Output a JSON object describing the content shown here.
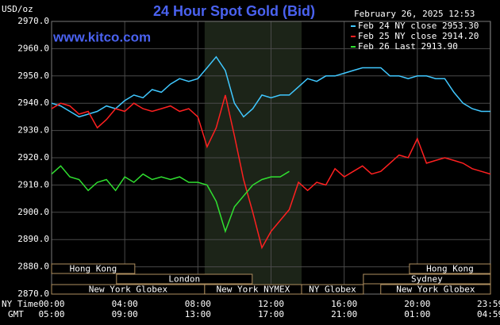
{
  "chart_data": {
    "type": "line",
    "title": "24 Hour Spot Gold (Bid)",
    "units": "USD/oz",
    "watermark": "www.kitco.com",
    "timestamp": "February 26, 2025 12:53",
    "x_row_labels": [
      "NY Time",
      "GMT"
    ],
    "grid": true,
    "xlim": [
      0,
      24
    ],
    "ylim": [
      2870,
      2970
    ],
    "yticks": [
      {
        "value": 2870,
        "label": "2870.0"
      },
      {
        "value": 2880,
        "label": "2880.0"
      },
      {
        "value": 2890,
        "label": "2890.0"
      },
      {
        "value": 2900,
        "label": "2900.0"
      },
      {
        "value": 2910,
        "label": "2910.0"
      },
      {
        "value": 2920,
        "label": "2920.0"
      },
      {
        "value": 2930,
        "label": "2930.0"
      },
      {
        "value": 2940,
        "label": "2940.0"
      },
      {
        "value": 2950,
        "label": "2950.0"
      },
      {
        "value": 2960,
        "label": "2960.0"
      },
      {
        "value": 2970,
        "label": "2970.0"
      }
    ],
    "xticks": [
      {
        "value": 0,
        "label": "00:00"
      },
      {
        "value": 4,
        "label": "04:00"
      },
      {
        "value": 8,
        "label": "08:00"
      },
      {
        "value": 12,
        "label": "12:00"
      },
      {
        "value": 16,
        "label": "16:00"
      },
      {
        "value": 20,
        "label": "20:00"
      },
      {
        "value": 23.983,
        "label": "23:59"
      }
    ],
    "xticks_gmt": [
      {
        "value": 0,
        "label": "05:00"
      },
      {
        "value": 4,
        "label": "09:00"
      },
      {
        "value": 8,
        "label": "13:00"
      },
      {
        "value": 12,
        "label": "17:00"
      },
      {
        "value": 16,
        "label": "21:00"
      },
      {
        "value": 20,
        "label": "01:00"
      },
      {
        "value": 23.983,
        "label": "04:59"
      }
    ],
    "x": [
      0,
      0.5,
      1,
      1.5,
      2,
      2.5,
      3,
      3.5,
      4,
      4.5,
      5,
      5.5,
      6,
      6.5,
      7,
      7.5,
      8,
      8.5,
      9,
      9.5,
      10,
      10.5,
      11,
      11.5,
      12,
      12.5,
      13,
      13.5,
      14,
      14.5,
      15,
      15.5,
      16,
      16.5,
      17,
      17.5,
      18,
      18.5,
      19,
      19.5,
      20,
      20.5,
      21,
      21.5,
      22,
      22.5,
      23,
      23.5,
      24
    ],
    "series": [
      {
        "name": "Feb 24 NY close 2953.30",
        "color": "#40c8ff",
        "values": [
          2940,
          2939,
          2937,
          2935,
          2936,
          2937,
          2939,
          2938,
          2941,
          2943,
          2942,
          2945,
          2944,
          2947,
          2949,
          2948,
          2949,
          2953,
          2957,
          2952,
          2940,
          2935,
          2938,
          2943,
          2942,
          2943,
          2943,
          2946,
          2949,
          2948,
          2950,
          2950,
          2951,
          2952,
          2953,
          2953,
          2953,
          2950,
          2950,
          2949,
          2950,
          2950,
          2949,
          2949,
          2944,
          2940,
          2938,
          2937,
          2937
        ]
      },
      {
        "name": "Feb 25 NY close 2914.20",
        "color": "#ff2020",
        "values": [
          2938,
          2940,
          2939,
          2936,
          2937,
          2931,
          2934,
          2938,
          2937,
          2940,
          2938,
          2937,
          2938,
          2939,
          2937,
          2938,
          2935,
          2924,
          2931,
          2943,
          2928,
          2912,
          2900,
          2887,
          2893,
          2897,
          2901,
          2911,
          2908,
          2911,
          2910,
          2916,
          2913,
          2915,
          2917,
          2914,
          2915,
          2918,
          2921,
          2920,
          2927,
          2918,
          2919,
          2920,
          2919,
          2918,
          2916,
          2915,
          2914
        ]
      },
      {
        "name": "Feb 26 Last 2913.90",
        "color": "#30e030",
        "values": [
          2914,
          2917,
          2913,
          2912,
          2908,
          2911,
          2912,
          2908,
          2913,
          2911,
          2914,
          2912,
          2913,
          2912,
          2913,
          2911,
          2911,
          2910,
          2904,
          2893,
          2902,
          2906,
          2910,
          2912,
          2913,
          2913,
          2915,
          null,
          null,
          null,
          null,
          null,
          null,
          null,
          null,
          null,
          null,
          null,
          null,
          null,
          null,
          null,
          null,
          null,
          null,
          null,
          null,
          null,
          null
        ]
      }
    ],
    "sessions": [
      {
        "name": "Hong Kong",
        "start": 0,
        "end": 4.55
      },
      {
        "name": "London",
        "start": 3.55,
        "end": 10.97
      },
      {
        "name": "New York Globex",
        "start": 0,
        "end": 8.37
      },
      {
        "name": "New York NYMEX",
        "start": 8.37,
        "end": 13.67
      },
      {
        "name": "NY Globex",
        "start": 13.67,
        "end": 17.05
      },
      {
        "name": "Sydney",
        "start": 17.05,
        "end": 24
      },
      {
        "name": "Hong Kong",
        "start": 19.57,
        "end": 24
      },
      {
        "name": "New York Globex",
        "start": 18.0,
        "end": 24
      }
    ]
  }
}
